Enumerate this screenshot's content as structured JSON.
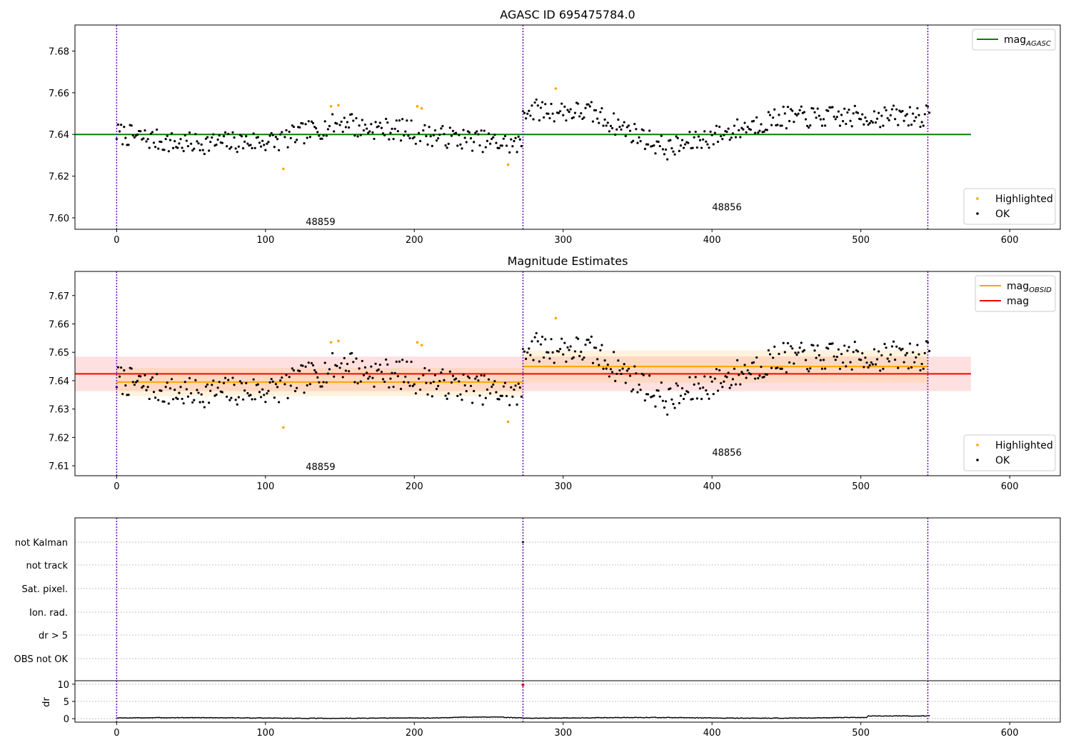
{
  "chart_data": [
    {
      "type": "scatter",
      "title": "AGASC ID 695475784.0",
      "xlim": [
        -28,
        634
      ],
      "ylim": [
        7.5945,
        7.6925
      ],
      "xticks": [
        0,
        100,
        200,
        300,
        400,
        500,
        600
      ],
      "yticks": [
        7.6,
        7.62,
        7.64,
        7.66,
        7.68
      ],
      "ytick_labels": [
        "7.60",
        "7.62",
        "7.64",
        "7.66",
        "7.68"
      ],
      "grid": false,
      "vlines": [
        0,
        273,
        545
      ],
      "obsid_labels": [
        {
          "text": "48859",
          "x": 137,
          "y": 7.5965
        },
        {
          "text": "48856",
          "x": 410,
          "y": 7.6035
        }
      ],
      "hlines": [
        {
          "name": "mag_AGASC",
          "y": 7.64,
          "x0": -28,
          "x1": 574,
          "color": "#008000"
        }
      ],
      "series": [
        {
          "name": "Highlighted",
          "color": "#ffa500",
          "x": [
            112,
            144,
            149,
            202,
            205,
            263,
            295
          ],
          "y": [
            7.6235,
            7.6535,
            7.654,
            7.6535,
            7.6525,
            7.6255,
            7.662
          ]
        },
        {
          "name": "OK",
          "color": "#000000",
          "noise_seed": 7
        }
      ],
      "legends": [
        {
          "position": "top-right",
          "items": [
            {
              "label_main": "mag",
              "label_sub": "AGASC",
              "kind": "line",
              "color": "#008000"
            }
          ]
        },
        {
          "position": "lower-right",
          "items": [
            {
              "label_main": "Highlighted",
              "label_sub": "",
              "kind": "dot",
              "color": "#ffa500"
            },
            {
              "label_main": "OK",
              "label_sub": "",
              "kind": "dot",
              "color": "#000000"
            }
          ]
        }
      ]
    },
    {
      "type": "scatter",
      "title": "Magnitude Estimates",
      "xlim": [
        -28,
        634
      ],
      "ylim": [
        7.6065,
        7.6785
      ],
      "xticks": [
        0,
        100,
        200,
        300,
        400,
        500,
        600
      ],
      "yticks": [
        7.61,
        7.62,
        7.63,
        7.64,
        7.65,
        7.66,
        7.67
      ],
      "ytick_labels": [
        "7.61",
        "7.62",
        "7.63",
        "7.64",
        "7.65",
        "7.66",
        "7.67"
      ],
      "grid": false,
      "vlines": [
        0,
        273,
        545
      ],
      "obsid_labels": [
        {
          "text": "48859",
          "x": 137,
          "y": 7.6085
        },
        {
          "text": "48856",
          "x": 410,
          "y": 7.6135
        }
      ],
      "hlines": [
        {
          "name": "mag",
          "y": 7.6424,
          "x0": -28,
          "x1": 574,
          "color": "#ff0000",
          "band": [
            7.6363,
            7.6485
          ],
          "band_color": "rgba(255,0,0,0.12)"
        },
        {
          "name": "mag_OBSID_48859",
          "y": 7.6395,
          "x0": 0,
          "x1": 273,
          "color": "#ffa500",
          "band": [
            7.6345,
            7.6445
          ],
          "band_color": "rgba(255,165,0,0.13)"
        },
        {
          "name": "mag_OBSID_48856",
          "y": 7.645,
          "x0": 273,
          "x1": 545,
          "color": "#ffa500",
          "band": [
            7.6393,
            7.6507
          ],
          "band_color": "rgba(255,165,0,0.13)"
        }
      ],
      "series": [
        {
          "name": "Highlighted",
          "color": "#ffa500",
          "x": [
            112,
            144,
            149,
            202,
            205,
            263,
            295
          ],
          "y": [
            7.6235,
            7.6535,
            7.654,
            7.6535,
            7.6525,
            7.6255,
            7.662
          ]
        },
        {
          "name": "OK",
          "color": "#000000",
          "noise_seed": 7
        }
      ],
      "legends": [
        {
          "position": "top-right",
          "items": [
            {
              "label_main": "mag",
              "label_sub": "OBSID",
              "kind": "line",
              "color": "#ffa500"
            },
            {
              "label_main": "mag",
              "label_sub": "",
              "kind": "line",
              "color": "#ff0000"
            }
          ]
        },
        {
          "position": "lower-right",
          "items": [
            {
              "label_main": "Highlighted",
              "label_sub": "",
              "kind": "dot",
              "color": "#ffa500"
            },
            {
              "label_main": "OK",
              "label_sub": "",
              "kind": "dot",
              "color": "#000000"
            }
          ]
        }
      ]
    },
    {
      "type": "scatter",
      "title": "",
      "xlim": [
        -28,
        634
      ],
      "flag_labels": [
        "not Kalman",
        "not track",
        "Sat. pixel.",
        "Ion. rad.",
        "dr > 5",
        "OBS not OK"
      ],
      "vlines": [
        0,
        273,
        545
      ],
      "grid": true
    },
    {
      "type": "line",
      "title": "",
      "ylabel": "dr",
      "xlim": [
        -28,
        634
      ],
      "ylim": [
        -1,
        11
      ],
      "xticks": [
        0,
        100,
        200,
        300,
        400,
        500,
        600
      ],
      "yticks": [
        0,
        5,
        10
      ],
      "ytick_labels": [
        "0",
        "5",
        "10"
      ],
      "grid": true,
      "vlines": [
        0,
        273,
        545
      ],
      "outlier_points": [
        {
          "x": 273,
          "y": 9.8,
          "color": "#ff0000"
        }
      ],
      "series": [
        {
          "name": "dr",
          "color": "#000000"
        }
      ]
    }
  ]
}
